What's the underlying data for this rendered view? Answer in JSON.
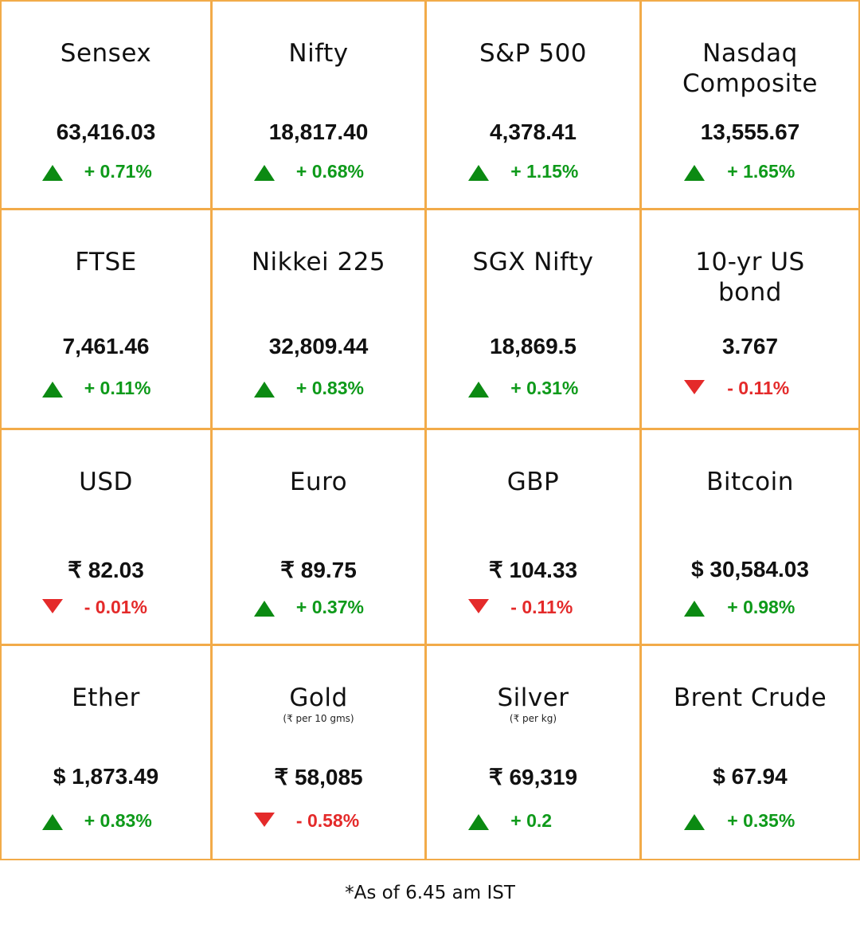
{
  "cells": [
    {
      "name": "Sensex",
      "value": "63,416.03",
      "change": "+ 0.71%",
      "direction": "up"
    },
    {
      "name": "Nifty",
      "value": "18,817.40",
      "change": "+ 0.68%",
      "direction": "up"
    },
    {
      "name": "S&P 500",
      "value": "4,378.41",
      "change": "+ 1.15%",
      "direction": "up"
    },
    {
      "name": "Nasdaq Composite",
      "value": "13,555.67",
      "change": "+ 1.65%",
      "direction": "up"
    },
    {
      "name": "FTSE",
      "value": "7,461.46",
      "change": "+ 0.11%",
      "direction": "up"
    },
    {
      "name": "Nikkei 225",
      "value": "32,809.44",
      "change": "+ 0.83%",
      "direction": "up"
    },
    {
      "name": "SGX Nifty",
      "value": "18,869.5",
      "change": "+ 0.31%",
      "direction": "up"
    },
    {
      "name": "10-yr US bond",
      "value": "3.767",
      "change": "- 0.11%",
      "direction": "down"
    },
    {
      "name": "USD",
      "value": "₹ 82.03",
      "change": "- 0.01%",
      "direction": "down"
    },
    {
      "name": "Euro",
      "value": "₹ 89.75",
      "change": "+ 0.37%",
      "direction": "up"
    },
    {
      "name": "GBP",
      "value": "₹ 104.33",
      "change": "- 0.11%",
      "direction": "down"
    },
    {
      "name": "Bitcoin",
      "value": "$ 30,584.03",
      "change": "+ 0.98%",
      "direction": "up"
    },
    {
      "name": "Ether",
      "value": "$ 1,873.49",
      "change": "+ 0.83%",
      "direction": "up"
    },
    {
      "name": "Gold",
      "sub": "(₹ per 10 gms)",
      "value": "₹ 58,085",
      "change": "- 0.58%",
      "direction": "down"
    },
    {
      "name": "Silver",
      "sub": "(₹ per kg)",
      "value": "₹ 69,319",
      "change": "+ 0.2",
      "direction": "up"
    },
    {
      "name": "Brent Crude",
      "value": "$ 67.94",
      "change": "+ 0.35%",
      "direction": "up"
    }
  ],
  "colors": {
    "border": "#f2ab49",
    "up": "#0e9a1a",
    "down": "#e42a2a"
  },
  "footnote": "*As of 6.45 am IST"
}
